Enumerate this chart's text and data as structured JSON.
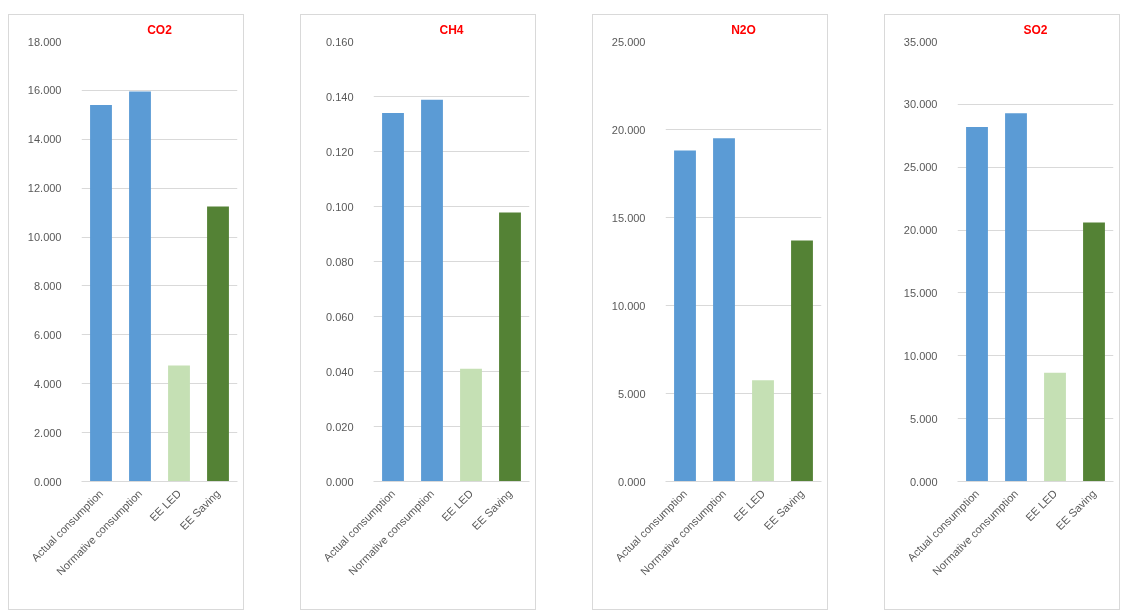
{
  "chart_data": [
    {
      "type": "bar",
      "title": "CO2",
      "categories": [
        "Actual consumption",
        "Normative consumption",
        "EE LED",
        "EE Saving"
      ],
      "values": [
        15.4,
        15.95,
        4.75,
        11.25
      ],
      "colors": [
        "#5b9bd5",
        "#5b9bd5",
        "#c5e0b4",
        "#548235"
      ],
      "ylim": [
        0,
        18
      ],
      "yticks": [
        {
          "value": 0,
          "label": "0.000"
        },
        {
          "value": 2,
          "label": "2.000"
        },
        {
          "value": 4,
          "label": "4.000"
        },
        {
          "value": 6,
          "label": "6.000"
        },
        {
          "value": 8,
          "label": "8.000"
        },
        {
          "value": 10,
          "label": "10.000"
        },
        {
          "value": 12,
          "label": "12.000"
        },
        {
          "value": 14,
          "label": "14.000"
        },
        {
          "value": 16,
          "label": "16.000"
        },
        {
          "value": 18,
          "label": "18.000"
        }
      ],
      "grid": "y"
    },
    {
      "type": "bar",
      "title": "CH4",
      "categories": [
        "Actual consumption",
        "Normative consumption",
        "EE LED",
        "EE Saving"
      ],
      "values": [
        0.134,
        0.1388,
        0.041,
        0.0978
      ],
      "colors": [
        "#5b9bd5",
        "#5b9bd5",
        "#c5e0b4",
        "#548235"
      ],
      "ylim": [
        0,
        0.16
      ],
      "yticks": [
        {
          "value": 0,
          "label": "0.000"
        },
        {
          "value": 0.02,
          "label": "0.020"
        },
        {
          "value": 0.04,
          "label": "0.040"
        },
        {
          "value": 0.06,
          "label": "0.060"
        },
        {
          "value": 0.08,
          "label": "0.080"
        },
        {
          "value": 0.1,
          "label": "0.100"
        },
        {
          "value": 0.12,
          "label": "0.120"
        },
        {
          "value": 0.14,
          "label": "0.140"
        },
        {
          "value": 0.16,
          "label": "0.160"
        }
      ],
      "grid": "y"
    },
    {
      "type": "bar",
      "title": "N2O",
      "categories": [
        "Actual consumption",
        "Normative consumption",
        "EE LED",
        "EE Saving"
      ],
      "values": [
        18.8,
        19.5,
        5.75,
        13.7
      ],
      "colors": [
        "#5b9bd5",
        "#5b9bd5",
        "#c5e0b4",
        "#548235"
      ],
      "ylim": [
        0,
        25
      ],
      "yticks": [
        {
          "value": 0,
          "label": "0.000"
        },
        {
          "value": 5,
          "label": "5.000"
        },
        {
          "value": 10,
          "label": "10.000"
        },
        {
          "value": 15,
          "label": "15.000"
        },
        {
          "value": 20,
          "label": "20.000"
        },
        {
          "value": 25,
          "label": "25.000"
        }
      ],
      "grid": "y"
    },
    {
      "type": "bar",
      "title": "SO2",
      "categories": [
        "Actual consumption",
        "Normative consumption",
        "EE LED",
        "EE Saving"
      ],
      "values": [
        28.2,
        29.3,
        8.65,
        20.6
      ],
      "colors": [
        "#5b9bd5",
        "#5b9bd5",
        "#c5e0b4",
        "#548235"
      ],
      "ylim": [
        0,
        35
      ],
      "yticks": [
        {
          "value": 0,
          "label": "0.000"
        },
        {
          "value": 5,
          "label": "5.000"
        },
        {
          "value": 10,
          "label": "10.000"
        },
        {
          "value": 15,
          "label": "15.000"
        },
        {
          "value": 20,
          "label": "20.000"
        },
        {
          "value": 25,
          "label": "25.000"
        },
        {
          "value": 30,
          "label": "30.000"
        },
        {
          "value": 35,
          "label": "35.000"
        }
      ],
      "grid": "y"
    }
  ]
}
